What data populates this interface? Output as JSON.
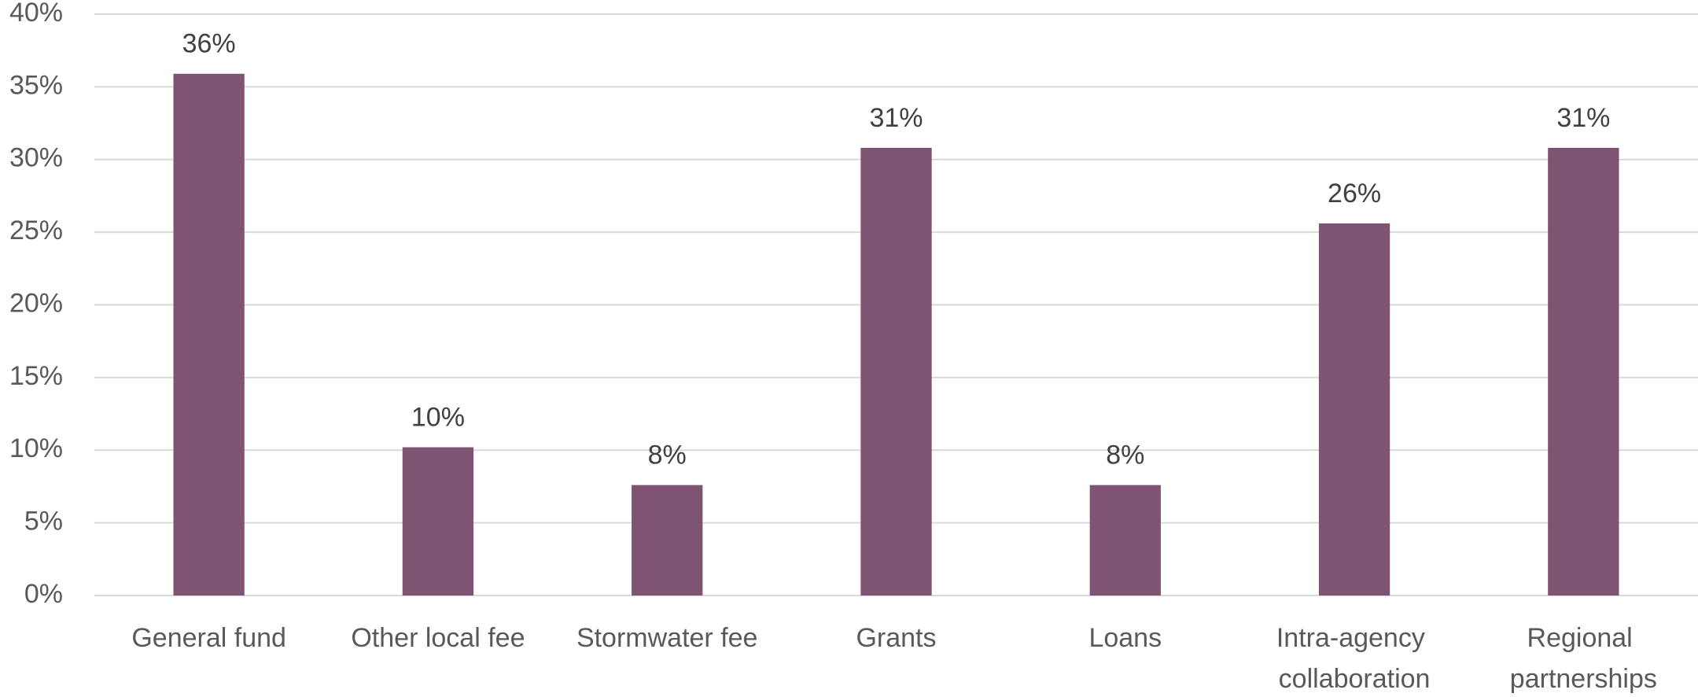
{
  "chart_data": {
    "type": "bar",
    "categories": [
      "General fund",
      "Other local fee",
      "Stormwater fee",
      "Grants",
      "Loans",
      "Intra-agency collaboration",
      "Regional partnerships"
    ],
    "values": [
      35.9,
      10.2,
      7.6,
      30.8,
      7.6,
      25.6,
      30.8
    ],
    "value_labels": [
      "36%",
      "10%",
      "8%",
      "31%",
      "8%",
      "26%",
      "31%"
    ],
    "color": "#7f5473",
    "ylim": [
      0,
      40
    ],
    "yticks": [
      {
        "value": 0,
        "label": "0%"
      },
      {
        "value": 5,
        "label": "5%"
      },
      {
        "value": 10,
        "label": "10%"
      },
      {
        "value": 15,
        "label": "15%"
      },
      {
        "value": 20,
        "label": "20%"
      },
      {
        "value": 25,
        "label": "25%"
      },
      {
        "value": 30,
        "label": "30%"
      },
      {
        "value": 35,
        "label": "35%"
      },
      {
        "value": 40,
        "label": "40%"
      }
    ],
    "grid": true
  }
}
